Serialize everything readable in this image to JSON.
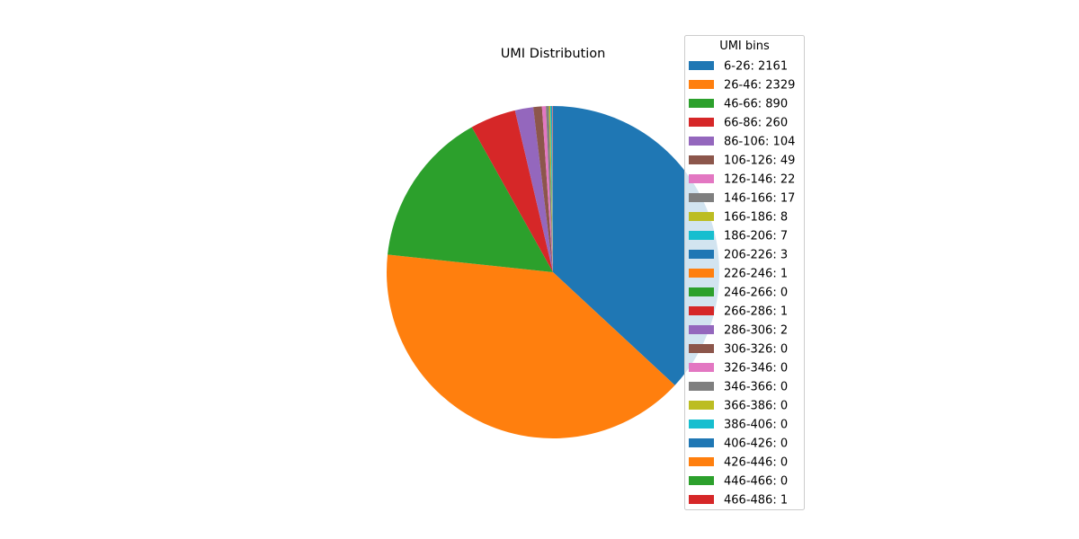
{
  "chart_data": {
    "type": "pie",
    "title": "UMI Distribution",
    "legend_title": "UMI bins",
    "legend_position": "right",
    "start_angle_deg": 90,
    "direction": "clockwise",
    "labels": [
      "6-26: 2161",
      "26-46: 2329",
      "46-66: 890",
      "66-86: 260",
      "86-106: 104",
      "106-126: 49",
      "126-146: 22",
      "146-166: 17",
      "166-186: 8",
      "186-206: 7",
      "206-226: 3",
      "226-246: 1",
      "246-266: 0",
      "266-286: 1",
      "286-306: 2",
      "306-326: 0",
      "326-346: 0",
      "346-366: 0",
      "366-386: 0",
      "386-406: 0",
      "406-426: 0",
      "426-446: 0",
      "446-466: 0",
      "466-486: 1"
    ],
    "categories": [
      "6-26",
      "26-46",
      "46-66",
      "66-86",
      "86-106",
      "106-126",
      "126-146",
      "146-166",
      "166-186",
      "186-206",
      "206-226",
      "226-246",
      "246-266",
      "266-286",
      "286-306",
      "306-326",
      "326-346",
      "346-366",
      "366-386",
      "386-406",
      "406-426",
      "426-446",
      "446-466",
      "466-486"
    ],
    "values": [
      2161,
      2329,
      890,
      260,
      104,
      49,
      22,
      17,
      8,
      7,
      3,
      1,
      0,
      1,
      2,
      0,
      0,
      0,
      0,
      0,
      0,
      0,
      0,
      1
    ],
    "colors": [
      "#1f77b4",
      "#ff7f0e",
      "#2ca02c",
      "#d62728",
      "#9467bd",
      "#8c564b",
      "#e377c2",
      "#7f7f7f",
      "#bcbd22",
      "#17becf",
      "#1f77b4",
      "#ff7f0e",
      "#2ca02c",
      "#d62728",
      "#9467bd",
      "#8c564b",
      "#e377c2",
      "#7f7f7f",
      "#bcbd22",
      "#17becf",
      "#1f77b4",
      "#ff7f0e",
      "#2ca02c",
      "#d62728"
    ]
  }
}
